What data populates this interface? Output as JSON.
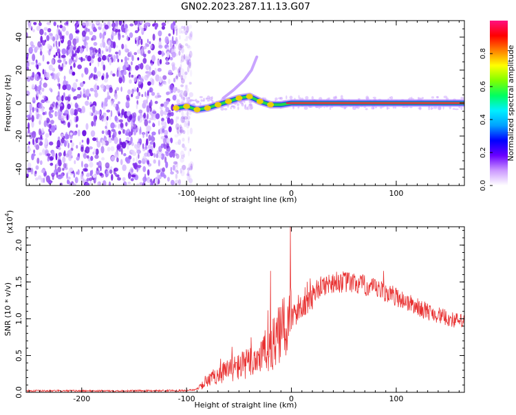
{
  "title": "GN02.2023.287.11.13.G07",
  "colors": {
    "snr_line": "#e83030",
    "scatter_purple": "#7a22e8",
    "ridge_red": "#e8204a",
    "ridge_green": "#22d84a",
    "ridge_blue": "#2050f0",
    "axis": "#000000"
  },
  "chart_data": [
    {
      "type": "heatmap",
      "xlabel": "Height of straight line (km)",
      "ylabel": "Frequency (Hz)",
      "xlim": [
        -253,
        165
      ],
      "ylim": [
        -50,
        50
      ],
      "xticks": [
        -200,
        -100,
        0,
        100
      ],
      "xtick_labels": [
        "-200",
        "-100",
        "0",
        "100"
      ],
      "yticks": [
        -40,
        -20,
        0,
        20,
        40
      ],
      "ytick_labels": [
        "-40",
        "-20",
        "0",
        "20",
        "40"
      ],
      "noise_region_x": [
        -253,
        -95
      ],
      "ridge_points": [
        {
          "x": -110,
          "y": -3
        },
        {
          "x": -100,
          "y": -2
        },
        {
          "x": -90,
          "y": -4
        },
        {
          "x": -80,
          "y": -3
        },
        {
          "x": -70,
          "y": -1
        },
        {
          "x": -60,
          "y": 1
        },
        {
          "x": -50,
          "y": 3
        },
        {
          "x": -40,
          "y": 4
        },
        {
          "x": -30,
          "y": 1
        },
        {
          "x": -20,
          "y": -1
        },
        {
          "x": -10,
          "y": -1
        },
        {
          "x": 0,
          "y": 0
        },
        {
          "x": 50,
          "y": 0
        },
        {
          "x": 100,
          "y": 0
        },
        {
          "x": 165,
          "y": 0
        }
      ],
      "branch_points": [
        {
          "x": -65,
          "y": 3
        },
        {
          "x": -55,
          "y": 8
        },
        {
          "x": -45,
          "y": 14
        },
        {
          "x": -38,
          "y": 20
        },
        {
          "x": -33,
          "y": 28
        }
      ],
      "colorbar": {
        "label": "Normalized spectral amplitude",
        "ticks": [
          0.0,
          0.2,
          0.4,
          0.6,
          0.8
        ],
        "tick_labels": [
          "0.0",
          "0.2",
          "0.4",
          "0.6",
          "0.8"
        ],
        "range": [
          0,
          1
        ],
        "colormap": [
          "#ffffff",
          "#cc99ff",
          "#6a00ff",
          "#0000ff",
          "#00a0ff",
          "#00f0ff",
          "#00ff60",
          "#80ff00",
          "#ffff00",
          "#ff8000",
          "#ff0000",
          "#ff1080"
        ]
      }
    },
    {
      "type": "line",
      "xlabel": "Height of straight line (km)",
      "ylabel": "SNR (10 * v/v)",
      "exponent_label": "(x10",
      "exponent_power": "4",
      "exponent_close": ")",
      "xlim": [
        -253,
        165
      ],
      "ylim": [
        0,
        22500
      ],
      "xticks": [
        -200,
        -100,
        0,
        100
      ],
      "xtick_labels": [
        "-200",
        "-100",
        "0",
        "100"
      ],
      "yticks": [
        0,
        5000,
        10000,
        15000,
        20000
      ],
      "ytick_labels": [
        "0.0",
        "0.5",
        "1.0",
        "1.5",
        "2.0"
      ],
      "envelope": [
        {
          "x": -253,
          "y": 200
        },
        {
          "x": -150,
          "y": 200
        },
        {
          "x": -100,
          "y": 250
        },
        {
          "x": -90,
          "y": 400
        },
        {
          "x": -80,
          "y": 1500
        },
        {
          "x": -70,
          "y": 2500
        },
        {
          "x": -60,
          "y": 3000
        },
        {
          "x": -50,
          "y": 3500
        },
        {
          "x": -40,
          "y": 4000
        },
        {
          "x": -30,
          "y": 5000
        },
        {
          "x": -20,
          "y": 6000
        },
        {
          "x": -10,
          "y": 8000
        },
        {
          "x": 0,
          "y": 10000
        },
        {
          "x": 10,
          "y": 12000
        },
        {
          "x": 20,
          "y": 13500
        },
        {
          "x": 30,
          "y": 14500
        },
        {
          "x": 40,
          "y": 15000
        },
        {
          "x": 50,
          "y": 15000
        },
        {
          "x": 60,
          "y": 14800
        },
        {
          "x": 70,
          "y": 14500
        },
        {
          "x": 80,
          "y": 14000
        },
        {
          "x": 90,
          "y": 13600
        },
        {
          "x": 100,
          "y": 13000
        },
        {
          "x": 110,
          "y": 12300
        },
        {
          "x": 120,
          "y": 11600
        },
        {
          "x": 130,
          "y": 11000
        },
        {
          "x": 140,
          "y": 10500
        },
        {
          "x": 150,
          "y": 10000
        },
        {
          "x": 165,
          "y": 9500
        }
      ],
      "spikes": [
        {
          "x": -20,
          "y": 16500
        },
        {
          "x": -1,
          "y": 22500
        },
        {
          "x": 88,
          "y": 16500
        }
      ]
    }
  ]
}
